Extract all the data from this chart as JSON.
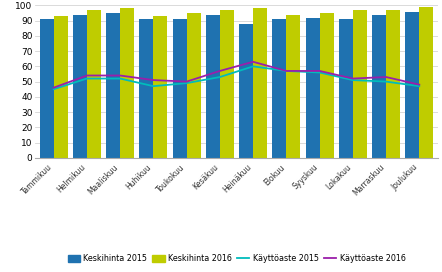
{
  "months": [
    "Tammikuu",
    "Helmikuu",
    "Maaliskuu",
    "Huhikuu",
    "Toukokuu",
    "Kesäkuu",
    "Heinäkuu",
    "Elokuu",
    "Syyskuu",
    "Lokakuu",
    "Marraskuu",
    "Joulukuu"
  ],
  "keskihinta_2015": [
    91,
    94,
    95,
    91,
    91,
    94,
    88,
    91,
    92,
    91,
    94,
    96
  ],
  "keskihinta_2016": [
    93,
    97,
    98,
    93,
    95,
    97,
    98,
    94,
    95,
    97,
    97,
    99
  ],
  "kayttoaste_2015": [
    45,
    52,
    52,
    47,
    49,
    53,
    60,
    57,
    56,
    51,
    50,
    47
  ],
  "kayttoaste_2016": [
    46,
    54,
    54,
    51,
    50,
    57,
    63,
    57,
    57,
    52,
    53,
    48
  ],
  "bar_color_2015": "#1F72B0",
  "bar_color_2016": "#BFCC00",
  "line_color_2015": "#00BCBC",
  "line_color_2016": "#9B1FAA",
  "ylim": [
    0,
    100
  ],
  "yticks": [
    0,
    10,
    20,
    30,
    40,
    50,
    60,
    70,
    80,
    90,
    100
  ],
  "legend_labels": [
    "Keskihinta 2015",
    "Keskihinta 2016",
    "Käyttöaste 2015",
    "Käyttöaste 2016"
  ],
  "bg_color": "#FFFFFF",
  "grid_color": "#CCCCCC"
}
